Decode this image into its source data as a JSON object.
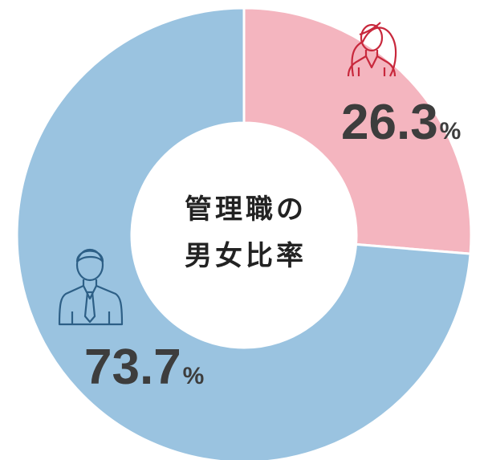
{
  "chart_data": {
    "type": "pie",
    "title_lines": [
      "管理職の",
      "男女比率"
    ],
    "values": [
      26.3,
      73.7
    ],
    "colors": [
      "#f4b5bf",
      "#9ac3e0"
    ],
    "unit": "%"
  }
}
